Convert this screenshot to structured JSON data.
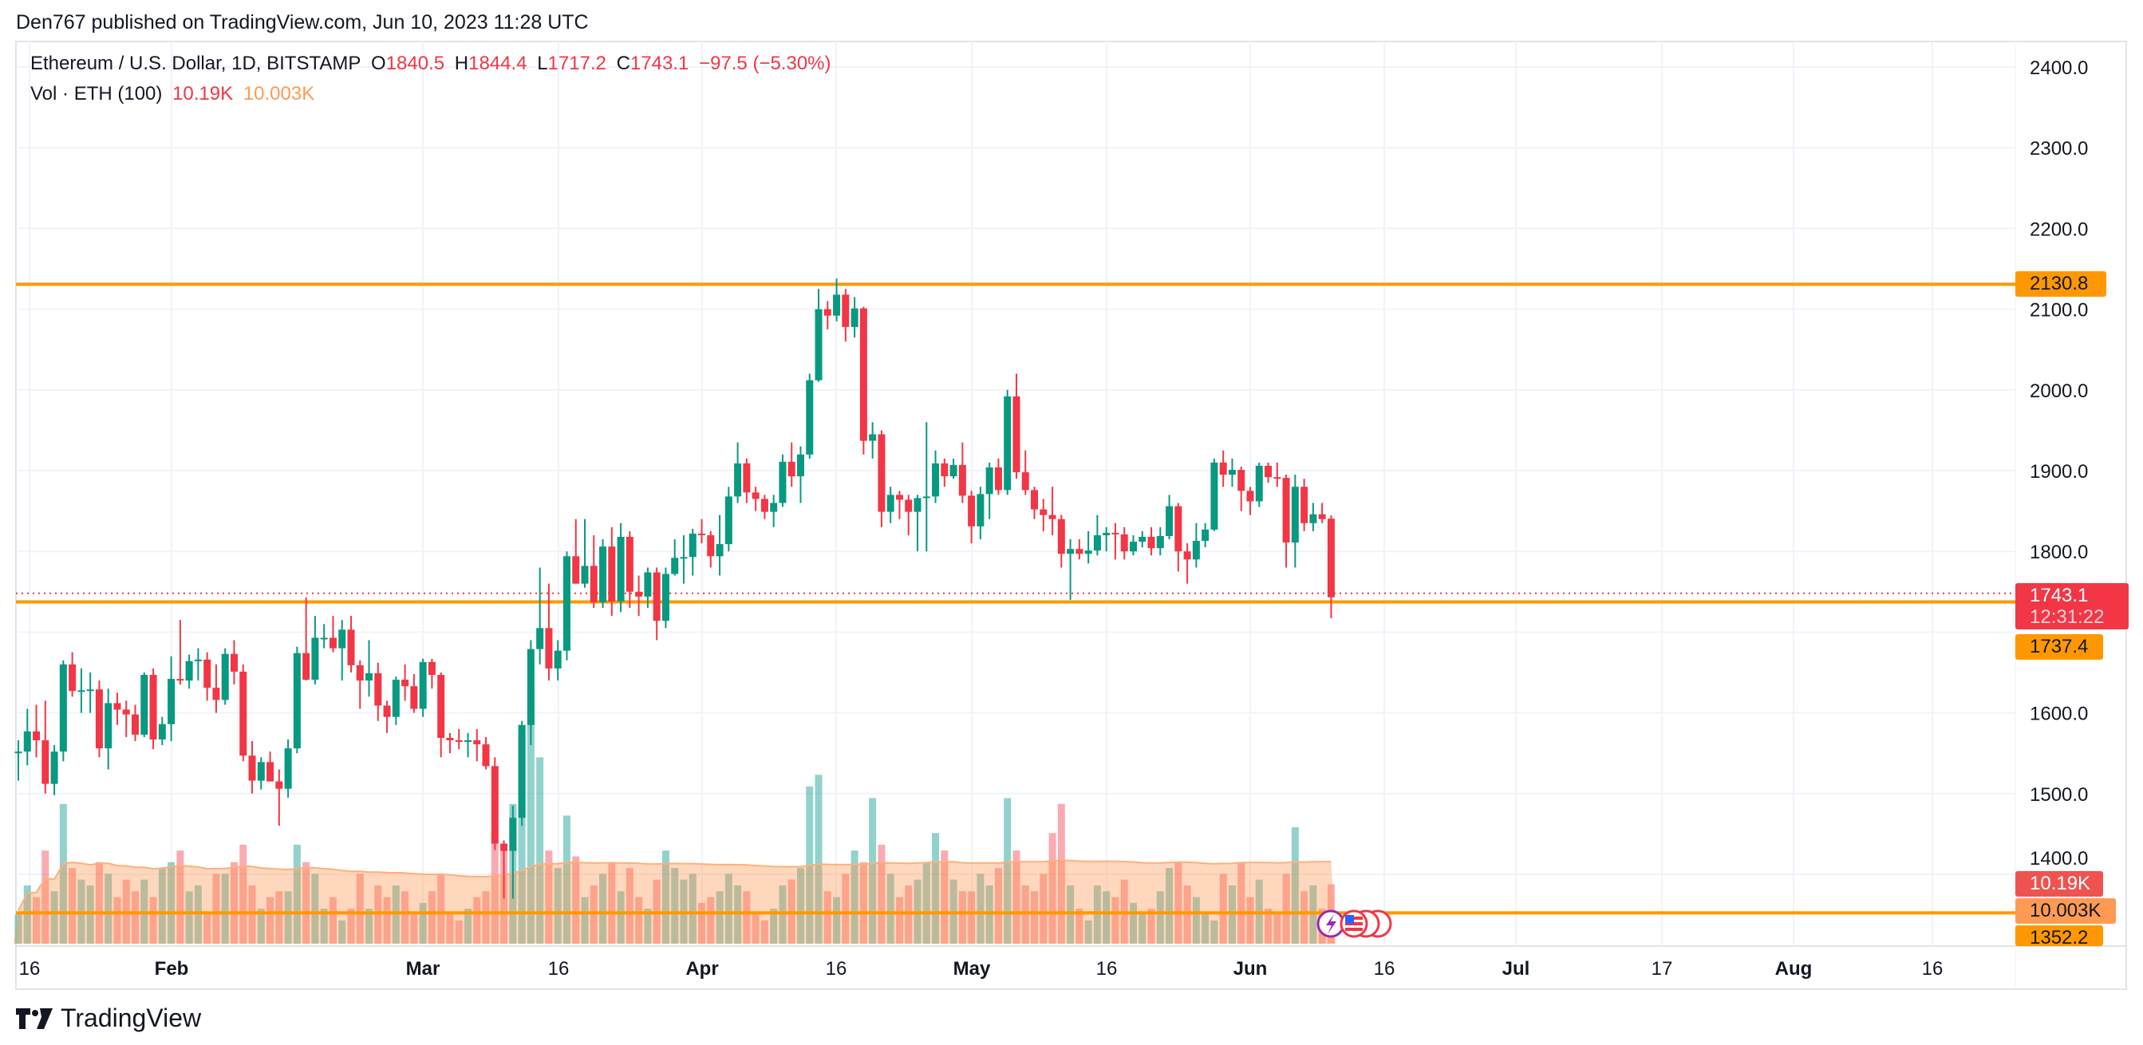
{
  "header": {
    "published": "Den767 published on TradingView.com, Jun 10, 2023 11:28 UTC"
  },
  "legend": {
    "symbol": "Ethereum / U.S. Dollar, 1D, BITSTAMP",
    "o_label": "O",
    "o": "1840.5",
    "h_label": "H",
    "h": "1844.4",
    "l_label": "L",
    "l": "1717.2",
    "c_label": "C",
    "c": "1743.1",
    "change": "−97.5 (−5.30%)",
    "vol_label": "Vol · ETH (100)",
    "vol": "10.19K",
    "vol_ma": "10.003K"
  },
  "tags": {
    "level_high": "2130.8",
    "last_price": "1743.1",
    "countdown": "12:31:22",
    "level_mid": "1737.4",
    "vol_value": "10.19K",
    "vol_ma": "10.003K",
    "level_low": "1352.2"
  },
  "branding": {
    "logo_text": "TradingView"
  },
  "colors": {
    "up": "#089981",
    "down": "#f23645",
    "level": "#ff9800",
    "vol_up": "rgba(38,166,154,0.5)",
    "vol_down": "rgba(242,54,69,0.42)",
    "vol_ma_fill": "rgba(255,150,80,0.38)"
  },
  "chart_data": {
    "type": "candlestick",
    "title": "Ethereum / U.S. Dollar, 1D, BITSTAMP",
    "first_date": "2023-01-15",
    "last_date": "2023-06-10",
    "ylim": [
      1352.2,
      2400
    ],
    "y_ticks": [
      "2400.0",
      "2300.0",
      "2200.0",
      "2100.0",
      "2000.0",
      "1900.0",
      "1800.0",
      "1700.0",
      "1600.0",
      "1500.0",
      "1400.0"
    ],
    "x_ticks": [
      "16",
      "Feb",
      "Mar",
      "16",
      "Apr",
      "16",
      "May",
      "16",
      "Jun",
      "16",
      "Jul",
      "17",
      "Aug",
      "16"
    ],
    "horizontal_lines": [
      2130.8,
      1737.4,
      1352.2
    ],
    "last_price_line": 1743.1,
    "ohlc": [
      [
        1550,
        1566,
        1516,
        1552
      ],
      [
        1552,
        1605,
        1535,
        1577
      ],
      [
        1577,
        1610,
        1545,
        1566
      ],
      [
        1566,
        1615,
        1500,
        1512
      ],
      [
        1512,
        1560,
        1498,
        1552
      ],
      [
        1552,
        1665,
        1540,
        1660
      ],
      [
        1660,
        1675,
        1620,
        1627
      ],
      [
        1627,
        1655,
        1600,
        1628
      ],
      [
        1628,
        1650,
        1600,
        1629
      ],
      [
        1629,
        1640,
        1545,
        1556
      ],
      [
        1556,
        1630,
        1530,
        1612
      ],
      [
        1612,
        1625,
        1585,
        1604
      ],
      [
        1604,
        1615,
        1570,
        1598
      ],
      [
        1598,
        1610,
        1565,
        1573
      ],
      [
        1573,
        1650,
        1570,
        1647
      ],
      [
        1647,
        1655,
        1555,
        1567
      ],
      [
        1567,
        1595,
        1560,
        1586
      ],
      [
        1586,
        1670,
        1565,
        1642
      ],
      [
        1642,
        1715,
        1635,
        1640
      ],
      [
        1640,
        1672,
        1630,
        1664
      ],
      [
        1664,
        1680,
        1640,
        1666
      ],
      [
        1666,
        1675,
        1615,
        1631
      ],
      [
        1631,
        1660,
        1600,
        1616
      ],
      [
        1616,
        1680,
        1610,
        1673
      ],
      [
        1673,
        1690,
        1635,
        1651
      ],
      [
        1651,
        1660,
        1540,
        1547
      ],
      [
        1547,
        1565,
        1500,
        1516
      ],
      [
        1516,
        1545,
        1505,
        1539
      ],
      [
        1539,
        1552,
        1515,
        1515
      ],
      [
        1515,
        1530,
        1460,
        1506
      ],
      [
        1506,
        1567,
        1495,
        1556
      ],
      [
        1556,
        1682,
        1550,
        1674
      ],
      [
        1674,
        1743,
        1640,
        1641
      ],
      [
        1641,
        1720,
        1635,
        1693
      ],
      [
        1693,
        1710,
        1680,
        1693
      ],
      [
        1693,
        1720,
        1675,
        1680
      ],
      [
        1680,
        1715,
        1640,
        1703
      ],
      [
        1703,
        1720,
        1650,
        1659
      ],
      [
        1659,
        1665,
        1605,
        1640
      ],
      [
        1640,
        1690,
        1620,
        1649
      ],
      [
        1649,
        1662,
        1590,
        1609
      ],
      [
        1609,
        1615,
        1575,
        1595
      ],
      [
        1595,
        1645,
        1585,
        1641
      ],
      [
        1641,
        1660,
        1615,
        1633
      ],
      [
        1633,
        1648,
        1600,
        1605
      ],
      [
        1605,
        1667,
        1595,
        1663
      ],
      [
        1663,
        1667,
        1630,
        1647
      ],
      [
        1647,
        1650,
        1545,
        1569
      ],
      [
        1569,
        1575,
        1550,
        1566
      ],
      [
        1566,
        1580,
        1555,
        1565
      ],
      [
        1565,
        1575,
        1545,
        1566
      ],
      [
        1566,
        1580,
        1540,
        1561
      ],
      [
        1561,
        1570,
        1530,
        1534
      ],
      [
        1534,
        1545,
        1430,
        1438
      ],
      [
        1438,
        1442,
        1370,
        1429
      ],
      [
        1429,
        1485,
        1370,
        1470
      ],
      [
        1470,
        1590,
        1460,
        1585
      ],
      [
        1585,
        1690,
        1560,
        1679
      ],
      [
        1679,
        1780,
        1660,
        1705
      ],
      [
        1705,
        1760,
        1640,
        1655
      ],
      [
        1655,
        1690,
        1640,
        1677
      ],
      [
        1677,
        1800,
        1665,
        1794
      ],
      [
        1794,
        1840,
        1760,
        1760
      ],
      [
        1760,
        1840,
        1755,
        1782
      ],
      [
        1782,
        1820,
        1730,
        1737
      ],
      [
        1737,
        1815,
        1730,
        1806
      ],
      [
        1806,
        1830,
        1720,
        1738
      ],
      [
        1738,
        1835,
        1725,
        1818
      ],
      [
        1818,
        1825,
        1730,
        1750
      ],
      [
        1750,
        1770,
        1720,
        1744
      ],
      [
        1744,
        1780,
        1730,
        1774
      ],
      [
        1774,
        1780,
        1690,
        1714
      ],
      [
        1714,
        1780,
        1705,
        1772
      ],
      [
        1772,
        1815,
        1770,
        1792
      ],
      [
        1792,
        1820,
        1760,
        1793
      ],
      [
        1793,
        1828,
        1770,
        1822
      ],
      [
        1822,
        1840,
        1810,
        1820
      ],
      [
        1820,
        1825,
        1780,
        1794
      ],
      [
        1794,
        1845,
        1770,
        1809
      ],
      [
        1809,
        1880,
        1800,
        1868
      ],
      [
        1868,
        1935,
        1860,
        1909
      ],
      [
        1909,
        1915,
        1860,
        1873
      ],
      [
        1873,
        1880,
        1850,
        1865
      ],
      [
        1865,
        1870,
        1840,
        1849
      ],
      [
        1849,
        1870,
        1830,
        1860
      ],
      [
        1860,
        1920,
        1855,
        1911
      ],
      [
        1911,
        1935,
        1880,
        1893
      ],
      [
        1893,
        1930,
        1860,
        1920
      ],
      [
        1920,
        2020,
        1915,
        2012
      ],
      [
        2012,
        2125,
        2010,
        2100
      ],
      [
        2100,
        2110,
        2075,
        2092
      ],
      [
        2092,
        2138,
        2085,
        2118
      ],
      [
        2118,
        2125,
        2060,
        2078
      ],
      [
        2078,
        2115,
        2065,
        2101
      ],
      [
        2101,
        2103,
        1920,
        1937
      ],
      [
        1937,
        1960,
        1915,
        1945
      ],
      [
        1945,
        1950,
        1830,
        1849
      ],
      [
        1849,
        1880,
        1835,
        1870
      ],
      [
        1870,
        1875,
        1840,
        1864
      ],
      [
        1864,
        1870,
        1820,
        1849
      ],
      [
        1849,
        1870,
        1800,
        1866
      ],
      [
        1866,
        1960,
        1800,
        1868
      ],
      [
        1868,
        1925,
        1860,
        1909
      ],
      [
        1909,
        1915,
        1880,
        1893
      ],
      [
        1893,
        1915,
        1890,
        1907
      ],
      [
        1907,
        1935,
        1860,
        1869
      ],
      [
        1869,
        1875,
        1810,
        1831
      ],
      [
        1831,
        1880,
        1815,
        1871
      ],
      [
        1871,
        1910,
        1840,
        1904
      ],
      [
        1904,
        1915,
        1870,
        1876
      ],
      [
        1876,
        2000,
        1870,
        1992
      ],
      [
        1992,
        2020,
        1890,
        1898
      ],
      [
        1898,
        1925,
        1870,
        1876
      ],
      [
        1876,
        1880,
        1840,
        1852
      ],
      [
        1852,
        1865,
        1825,
        1845
      ],
      [
        1845,
        1880,
        1820,
        1840
      ],
      [
        1840,
        1845,
        1780,
        1797
      ],
      [
        1797,
        1815,
        1740,
        1803
      ],
      [
        1803,
        1815,
        1790,
        1797
      ],
      [
        1797,
        1825,
        1785,
        1801
      ],
      [
        1801,
        1845,
        1795,
        1820
      ],
      [
        1820,
        1830,
        1800,
        1823
      ],
      [
        1823,
        1835,
        1790,
        1821
      ],
      [
        1821,
        1830,
        1790,
        1800
      ],
      [
        1800,
        1820,
        1795,
        1812
      ],
      [
        1812,
        1825,
        1805,
        1818
      ],
      [
        1818,
        1830,
        1795,
        1804
      ],
      [
        1804,
        1830,
        1795,
        1819
      ],
      [
        1819,
        1870,
        1815,
        1856
      ],
      [
        1856,
        1860,
        1775,
        1800
      ],
      [
        1800,
        1810,
        1760,
        1790
      ],
      [
        1790,
        1835,
        1780,
        1813
      ],
      [
        1813,
        1835,
        1805,
        1827
      ],
      [
        1827,
        1915,
        1825,
        1910
      ],
      [
        1910,
        1925,
        1880,
        1895
      ],
      [
        1895,
        1915,
        1880,
        1901
      ],
      [
        1901,
        1905,
        1850,
        1875
      ],
      [
        1875,
        1880,
        1845,
        1862
      ],
      [
        1862,
        1910,
        1855,
        1906
      ],
      [
        1906,
        1910,
        1885,
        1892
      ],
      [
        1892,
        1910,
        1880,
        1891
      ],
      [
        1891,
        1895,
        1780,
        1811
      ],
      [
        1811,
        1895,
        1780,
        1880
      ],
      [
        1880,
        1890,
        1825,
        1835
      ],
      [
        1835,
        1860,
        1825,
        1846
      ],
      [
        1846,
        1860,
        1835,
        1840
      ],
      [
        1840.5,
        1844.4,
        1717.2,
        1743.1
      ]
    ],
    "volume_k": [
      5,
      10,
      8,
      16,
      9,
      24,
      13,
      11,
      10,
      14,
      12,
      8,
      11,
      9,
      11,
      8,
      13,
      14,
      16,
      9,
      10,
      5,
      12,
      12,
      14,
      17,
      10,
      6,
      8,
      9,
      9,
      17,
      14,
      12,
      6,
      8,
      4,
      6,
      12,
      6,
      10,
      8,
      10,
      9,
      5,
      7,
      9,
      12,
      5,
      4,
      6,
      8,
      9,
      18,
      16,
      24,
      36,
      44,
      32,
      16,
      13,
      22,
      15,
      8,
      10,
      12,
      14,
      9,
      13,
      8,
      6,
      11,
      16,
      13,
      11,
      12,
      7,
      8,
      9,
      12,
      10,
      9,
      5,
      4,
      6,
      10,
      11,
      13,
      27,
      29,
      9,
      8,
      12,
      16,
      14,
      25,
      17,
      12,
      8,
      10,
      11,
      14,
      19,
      16,
      11,
      9,
      9,
      12,
      10,
      13,
      25,
      16,
      10,
      9,
      12,
      19,
      24,
      10,
      6,
      4,
      10,
      9,
      8,
      11,
      7,
      5,
      6,
      9,
      13,
      14,
      10,
      8,
      5,
      4,
      12,
      10,
      14,
      8,
      11,
      6,
      5,
      12,
      20,
      9,
      10,
      6,
      10.19
    ],
    "volume_ma_period": 100
  }
}
